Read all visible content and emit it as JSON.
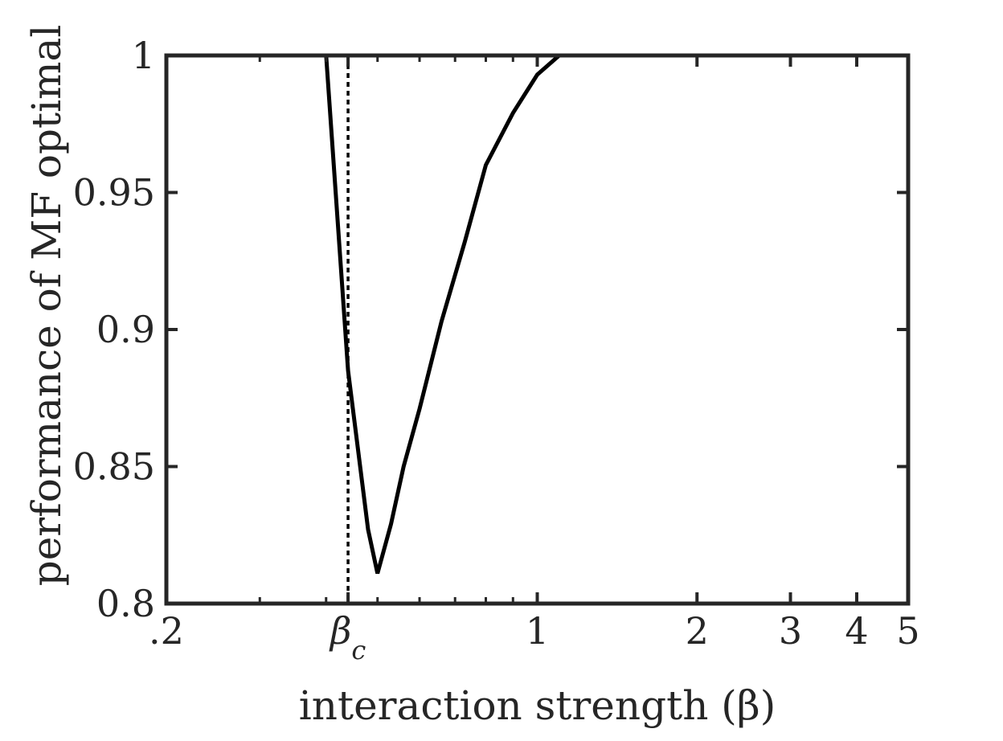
{
  "chart_data": {
    "type": "line",
    "title": "",
    "xlabel": "interaction strength (β)",
    "ylabel": "performance of MF optimal",
    "x_scale": "log",
    "xlim": [
      0.2,
      5
    ],
    "ylim": [
      0.8,
      1.0
    ],
    "x_ticks": [
      {
        "value": 0.2,
        "label": ".2"
      },
      {
        "value": 0.44,
        "label": "βc"
      },
      {
        "value": 1,
        "label": "1"
      },
      {
        "value": 2,
        "label": "2"
      },
      {
        "value": 3,
        "label": "3"
      },
      {
        "value": 4,
        "label": "4"
      },
      {
        "value": 5,
        "label": "5"
      }
    ],
    "y_ticks": [
      {
        "value": 0.8,
        "label": "0.8"
      },
      {
        "value": 0.85,
        "label": "0.85"
      },
      {
        "value": 0.9,
        "label": "0.9"
      },
      {
        "value": 0.95,
        "label": "0.95"
      },
      {
        "value": 1.0,
        "label": "1"
      }
    ],
    "reference_lines": [
      {
        "orientation": "vertical",
        "x": 0.44,
        "style": "dotted",
        "color": "#000000"
      }
    ],
    "series": [
      {
        "color": "#000000",
        "x": [
          0.2,
          0.4,
          0.44,
          0.48,
          0.5,
          0.53,
          0.56,
          0.6,
          0.66,
          0.73,
          0.8,
          0.9,
          1.0,
          1.1,
          1.25,
          1.45,
          2.0,
          3.0,
          5.0
        ],
        "y": [
          1.0,
          1.0,
          0.885,
          0.827,
          0.811,
          0.829,
          0.85,
          0.871,
          0.903,
          0.932,
          0.96,
          0.979,
          0.993,
          1.0,
          1.0,
          1.0,
          1.0,
          1.0,
          1.0
        ]
      }
    ],
    "grid": false,
    "legend": "none"
  }
}
